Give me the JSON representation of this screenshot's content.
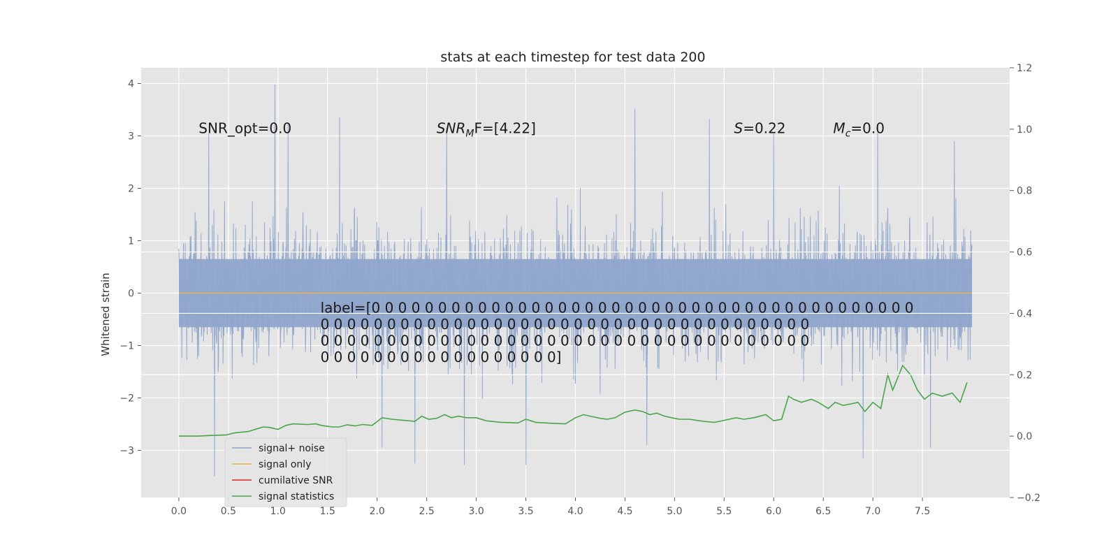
{
  "chart_data": {
    "type": "line",
    "title": "stats at each timestep for test data 200",
    "xlabel": "",
    "ylabel": "Whitened strain",
    "y2label": "",
    "xlim": [
      -0.38,
      8.38
    ],
    "ylim": [
      -3.9,
      4.3
    ],
    "y2lim": [
      -0.2,
      1.2
    ],
    "x_ticks": [
      "0.0",
      "0.5",
      "1.0",
      "1.5",
      "2.0",
      "2.5",
      "3.0",
      "3.5",
      "4.0",
      "4.5",
      "5.0",
      "5.5",
      "6.0",
      "6.5",
      "7.0",
      "7.5"
    ],
    "x_tick_values": [
      0.0,
      0.5,
      1.0,
      1.5,
      2.0,
      2.5,
      3.0,
      3.5,
      4.0,
      4.5,
      5.0,
      5.5,
      6.0,
      6.5,
      7.0,
      7.5
    ],
    "y_ticks": [
      "4",
      "3",
      "2",
      "1",
      "0",
      "−1",
      "−2",
      "−3"
    ],
    "y_tick_values": [
      4,
      3,
      2,
      1,
      0,
      -1,
      -2,
      -3
    ],
    "y2_ticks": [
      "1.2",
      "1.0",
      "0.8",
      "0.6",
      "0.4",
      "0.2",
      "0.0",
      "−0.2"
    ],
    "y2_tick_values": [
      1.2,
      1.0,
      0.8,
      0.6,
      0.4,
      0.2,
      0.0,
      -0.2
    ],
    "grid": true,
    "legend_position": "lower-left",
    "series": [
      {
        "name": "signal+ noise",
        "axis": "left",
        "style": "dense-noise",
        "x_range": [
          0.0,
          8.0
        ],
        "envelope": {
          "typical_max": 1.6,
          "typical_min": -1.6,
          "peak_max": 4.0,
          "peak_min": -3.5
        },
        "spikes": [
          [
            0.97,
            3.98
          ],
          [
            1.62,
            3.35
          ],
          [
            2.7,
            3.15
          ],
          [
            4.6,
            3.52
          ],
          [
            5.35,
            3.32
          ],
          [
            7.05,
            3.2
          ],
          [
            7.82,
            2.9
          ],
          [
            0.36,
            -3.5
          ],
          [
            2.38,
            -3.25
          ],
          [
            2.88,
            -3.28
          ],
          [
            3.5,
            -3.28
          ],
          [
            6.9,
            -3.15
          ],
          [
            7.58,
            -2.95
          ],
          [
            0.3,
            3.05
          ],
          [
            1.1,
            3.25
          ],
          [
            6.0,
            3.05
          ],
          [
            2.05,
            -2.95
          ],
          [
            4.72,
            -2.9
          ]
        ]
      },
      {
        "name": "signal only",
        "axis": "left",
        "x": [
          0.0,
          8.0
        ],
        "y": [
          0.0,
          0.0
        ]
      },
      {
        "name": "cumilative SNR",
        "axis": "right",
        "x": [],
        "y": []
      },
      {
        "name": "signal statistics",
        "axis": "right",
        "x": [
          0.0,
          0.2,
          0.3,
          0.4,
          0.48,
          0.55,
          0.6,
          0.7,
          0.8,
          0.85,
          0.92,
          1.0,
          1.08,
          1.15,
          1.3,
          1.38,
          1.45,
          1.55,
          1.62,
          1.7,
          1.78,
          1.85,
          1.95,
          2.05,
          2.15,
          2.25,
          2.32,
          2.38,
          2.45,
          2.52,
          2.6,
          2.68,
          2.75,
          2.82,
          2.9,
          3.0,
          3.1,
          3.25,
          3.35,
          3.42,
          3.5,
          3.6,
          3.75,
          3.9,
          4.0,
          4.08,
          4.15,
          4.25,
          4.32,
          4.4,
          4.5,
          4.6,
          4.68,
          4.75,
          4.82,
          4.9,
          5.0,
          5.05,
          5.15,
          5.25,
          5.3,
          5.4,
          5.45,
          5.55,
          5.62,
          5.7,
          5.8,
          5.92,
          6.0,
          6.08,
          6.15,
          6.2,
          6.28,
          6.38,
          6.45,
          6.55,
          6.62,
          6.7,
          6.78,
          6.85,
          6.92,
          7.0,
          7.08,
          7.15,
          7.2,
          7.3,
          7.38,
          7.45,
          7.52,
          7.6,
          7.7,
          7.8,
          7.88,
          7.95
        ],
        "y": [
          0.0,
          0.0,
          0.002,
          0.003,
          0.004,
          0.01,
          0.012,
          0.015,
          0.025,
          0.03,
          0.028,
          0.022,
          0.035,
          0.04,
          0.038,
          0.04,
          0.034,
          0.03,
          0.03,
          0.037,
          0.033,
          0.038,
          0.035,
          0.06,
          0.055,
          0.052,
          0.05,
          0.048,
          0.065,
          0.055,
          0.058,
          0.07,
          0.06,
          0.065,
          0.06,
          0.06,
          0.05,
          0.045,
          0.044,
          0.043,
          0.055,
          0.045,
          0.042,
          0.04,
          0.06,
          0.07,
          0.065,
          0.058,
          0.055,
          0.06,
          0.078,
          0.085,
          0.08,
          0.07,
          0.075,
          0.065,
          0.058,
          0.055,
          0.055,
          0.05,
          0.048,
          0.045,
          0.048,
          0.055,
          0.06,
          0.055,
          0.06,
          0.07,
          0.05,
          0.055,
          0.13,
          0.12,
          0.11,
          0.12,
          0.11,
          0.09,
          0.11,
          0.1,
          0.105,
          0.11,
          0.08,
          0.11,
          0.09,
          0.2,
          0.15,
          0.23,
          0.2,
          0.15,
          0.12,
          0.14,
          0.13,
          0.14,
          0.11,
          0.175
        ]
      }
    ],
    "annotations": [
      {
        "text": "SNR_opt=0.0",
        "x": 0.2,
        "y": 3.15
      },
      {
        "text": "SNR_MF=[4.22]",
        "x": 2.6,
        "y": 3.15
      },
      {
        "text": "S=0.22",
        "x": 5.6,
        "y": 3.15
      },
      {
        "text": "M_c=0.0",
        "x": 6.6,
        "y": 3.15
      }
    ],
    "label_text_lines": [
      "label=[0 0 0 0 0 0 0 0 0 0 0 0 0 0 0 0 0 0 0 0 0 0 0 0 0 0 0 0 0 0 0 0 0 0 0 0 0 0 0 0 0",
      " 0 0 0 0 0 0 0 0 0 0 0 0 0 0 0 0 0 0 0 0 0 0 0 0 0 0 0 0 0 0 0 0 0 0 0 0 0",
      " 0 0 0 0 0 0 0 0 0 0 0 0 0 0 0 0 0 0 0 0 0 0 0 0 0 0 0 0 0 0 0 0 0 0 0 0 0",
      " 0 0 0 0 0 0 0 0 0 0 0 0 0 0 0 0 0 0]"
    ],
    "label_position": {
      "x": 1.4,
      "y": -0.4
    },
    "colors": {
      "background": "#e5e5e5",
      "grid": "#ffffff",
      "noise": "#8fa5cb",
      "signal_only": "#e8b04a",
      "cumulative_snr": "#d62c1c",
      "statistics": "#4aa54a"
    }
  },
  "legend": {
    "items": [
      {
        "label": "signal+ noise",
        "color": "#8fa5cb"
      },
      {
        "label": "signal only",
        "color": "#e8b04a"
      },
      {
        "label": "cumilative SNR",
        "color": "#d62c1c"
      },
      {
        "label": "signal statistics",
        "color": "#4aa54a"
      }
    ]
  }
}
